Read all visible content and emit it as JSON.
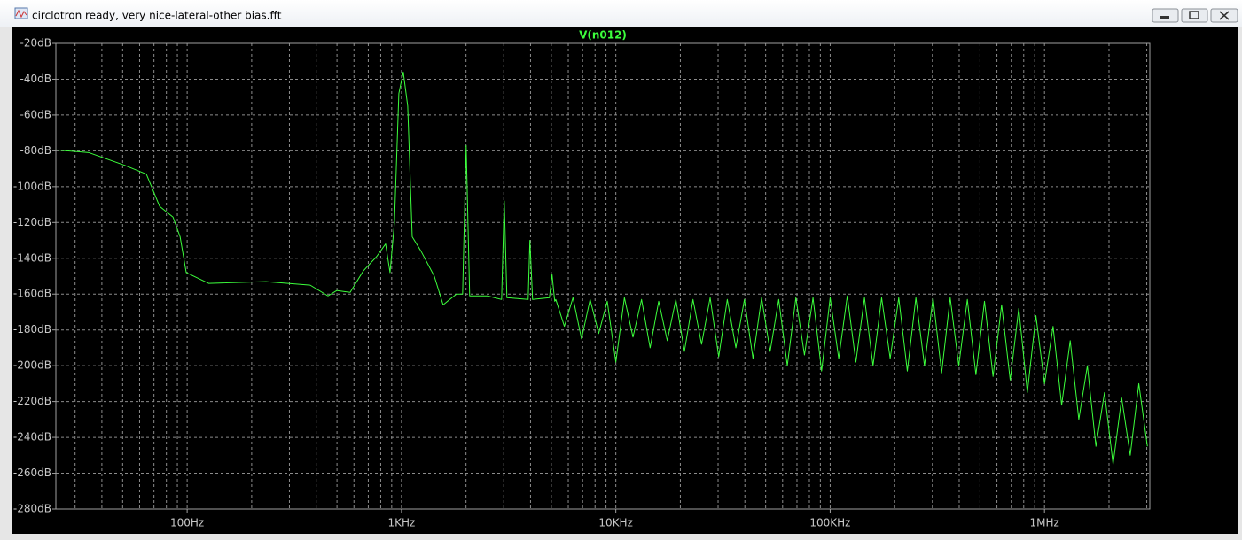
{
  "window": {
    "title": "circlotron ready, very nice-lateral-other bias.fft"
  },
  "chart_data": {
    "type": "line",
    "xscale": "log",
    "grid": true,
    "minor_grid": true,
    "xlim": [
      24.4,
      3100000
    ],
    "xticks": [
      {
        "value": 100,
        "label": "100Hz"
      },
      {
        "value": 1000,
        "label": "1KHz"
      },
      {
        "value": 10000,
        "label": "10KHz"
      },
      {
        "value": 100000,
        "label": "100KHz"
      },
      {
        "value": 1000000,
        "label": "1MHz"
      }
    ],
    "ylim": [
      -280,
      -20
    ],
    "yticks": [
      {
        "value": -20,
        "label": "-20dB"
      },
      {
        "value": -40,
        "label": "-40dB"
      },
      {
        "value": -60,
        "label": "-60dB"
      },
      {
        "value": -80,
        "label": "-80dB"
      },
      {
        "value": -100,
        "label": "-100dB"
      },
      {
        "value": -120,
        "label": "-120dB"
      },
      {
        "value": -140,
        "label": "-140dB"
      },
      {
        "value": -160,
        "label": "-160dB"
      },
      {
        "value": -180,
        "label": "-180dB"
      },
      {
        "value": -200,
        "label": "-200dB"
      },
      {
        "value": -220,
        "label": "-220dB"
      },
      {
        "value": -240,
        "label": "-240dB"
      },
      {
        "value": -260,
        "label": "-260dB"
      },
      {
        "value": -280,
        "label": "-280dB"
      }
    ],
    "x": [
      24.4,
      34.8,
      50.9,
      64.5,
      74.4,
      85.9,
      92.7,
      99,
      126,
      233,
      375,
      454,
      499,
      576,
      664,
      766,
      843,
      884,
      927,
      972,
      1019,
      1069,
      1122,
      1233,
      1422,
      1564,
      1803,
      1928,
      2003,
      2080,
      2518,
      2931,
      3016,
      3103,
      3899,
      3972,
      4089,
      4900,
      5038,
      5186,
      5248,
      5754,
      6310,
      6918,
      7586,
      8318,
      9120,
      10000,
      10965,
      12023,
      13183,
      14454,
      15849,
      17378,
      19055,
      20893,
      22909,
      25119,
      27542,
      30200,
      33113,
      36308,
      39811,
      43652,
      47863,
      52481,
      57544,
      63096,
      69183,
      75858,
      83176,
      91201,
      100000,
      109648,
      120226,
      131826,
      144544,
      158489,
      173780,
      190546,
      208930,
      229087,
      251189,
      275423,
      301995,
      331131,
      363078,
      398107,
      436516,
      478630,
      524807,
      575440,
      630957,
      691831,
      758578,
      831764,
      912011,
      1000000,
      1096478,
      1202264,
      1318257,
      1445440,
      1584893,
      1737801,
      1905461,
      2089296,
      2290868,
      2511886,
      2754229,
      3019952
    ],
    "series": [
      {
        "name": "V(n012)",
        "color": "#3cff3c",
        "values": [
          -79.5,
          -81,
          -88,
          -93,
          -111,
          -117,
          -128,
          -148,
          -154,
          -153,
          -155,
          -161,
          -158,
          -159,
          -147,
          -139,
          -132,
          -148,
          -120,
          -48,
          -36,
          -55,
          -128,
          -136,
          -150,
          -166,
          -160,
          -160,
          -77,
          -161,
          -161,
          -163,
          -108,
          -162,
          -163,
          -130,
          -163,
          -162,
          -149,
          -164,
          -163,
          -178,
          -162,
          -185,
          -163,
          -182,
          -164,
          -198,
          -162,
          -184,
          -163,
          -190,
          -164,
          -186,
          -163,
          -192,
          -163,
          -188,
          -162,
          -195,
          -163,
          -190,
          -163,
          -196,
          -162,
          -192,
          -163,
          -200,
          -162,
          -194,
          -162,
          -203,
          -162,
          -196,
          -161,
          -198,
          -162,
          -200,
          -162,
          -196,
          -162,
          -203,
          -162,
          -200,
          -162,
          -204,
          -162,
          -200,
          -163,
          -205,
          -164,
          -206,
          -166,
          -208,
          -168,
          -215,
          -172,
          -210,
          -178,
          -222,
          -186,
          -230,
          -200,
          -245,
          -215,
          -255,
          -218,
          -250,
          -210,
          -245
        ]
      }
    ]
  }
}
